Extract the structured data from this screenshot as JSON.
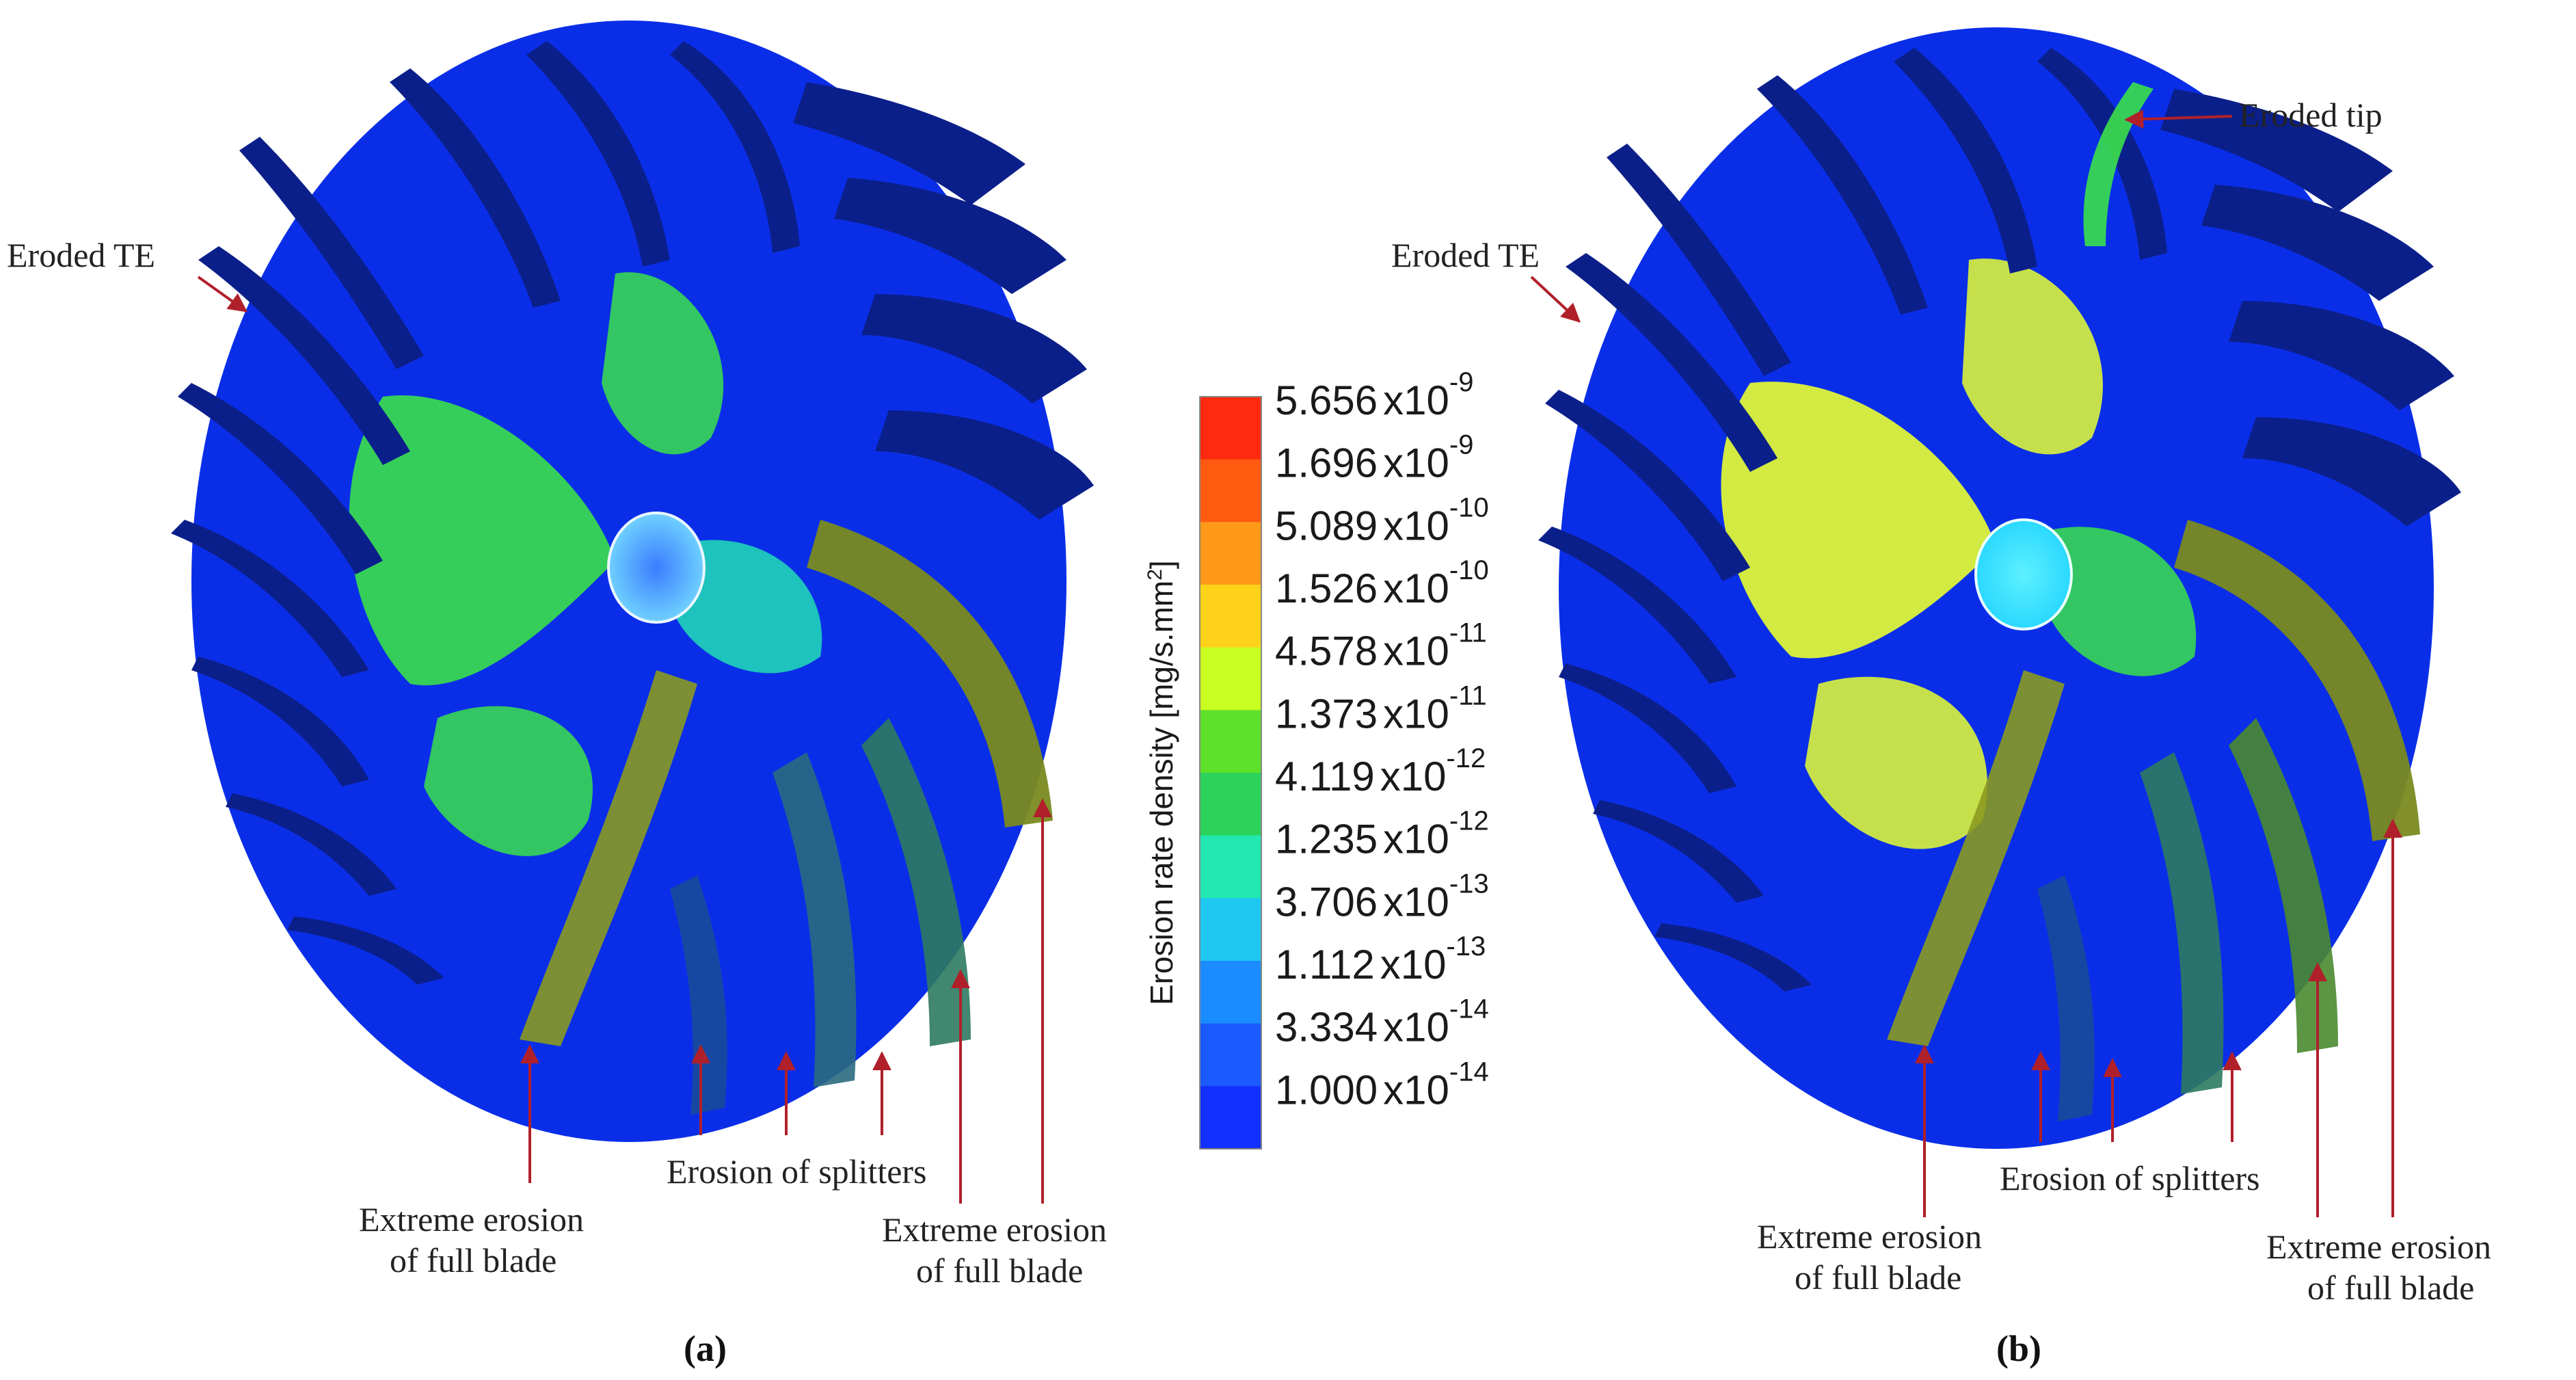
{
  "colorbar": {
    "title": "Erosion rate density [mg/s.mm",
    "title_sup": "2",
    "title_end": "]",
    "stops": [
      {
        "mantissa": "5.656",
        "exponent": "-9",
        "color": "#ff2a10"
      },
      {
        "mantissa": "1.696",
        "exponent": "-9",
        "color": "#ff5a10"
      },
      {
        "mantissa": "5.089",
        "exponent": "-10",
        "color": "#ff9a18"
      },
      {
        "mantissa": "1.526",
        "exponent": "-10",
        "color": "#ffd21a"
      },
      {
        "mantissa": "4.578",
        "exponent": "-11",
        "color": "#c8ff20"
      },
      {
        "mantissa": "1.373",
        "exponent": "-11",
        "color": "#5fe02a"
      },
      {
        "mantissa": "4.119",
        "exponent": "-12",
        "color": "#2bd35a"
      },
      {
        "mantissa": "1.235",
        "exponent": "-12",
        "color": "#22e8b0"
      },
      {
        "mantissa": "3.706",
        "exponent": "-13",
        "color": "#1ec8f0"
      },
      {
        "mantissa": "1.112",
        "exponent": "-13",
        "color": "#1a8cff"
      },
      {
        "mantissa": "3.334",
        "exponent": "-14",
        "color": "#1a5aff"
      },
      {
        "mantissa": "1.000",
        "exponent": "-14",
        "color": "#1230ff"
      }
    ],
    "x_label": "x10"
  },
  "panel_a": {
    "label": "(a)",
    "eroded_te": "Eroded TE",
    "extreme_left_1": "Extreme erosion",
    "extreme_left_2": "of full blade",
    "splitters": "Erosion of splitters",
    "extreme_right_1": "Extreme erosion",
    "extreme_right_2": "of full blade"
  },
  "panel_b": {
    "label": "(b)",
    "eroded_te": "Eroded TE",
    "eroded_tip": "Eroded tip",
    "extreme_left_1": "Extreme erosion",
    "extreme_left_2": "of full blade",
    "splitters": "Erosion of splitters",
    "extreme_right_1": "Extreme erosion",
    "extreme_right_2": "of full blade"
  },
  "colors": {
    "disc": "#0a2ee8",
    "blade": "#0b1f8a",
    "green": "#3be04a",
    "yellow": "#e8ff30",
    "olive": "#7a8a20",
    "cyan": "#30e0ff",
    "arrow": "#b0202a"
  }
}
